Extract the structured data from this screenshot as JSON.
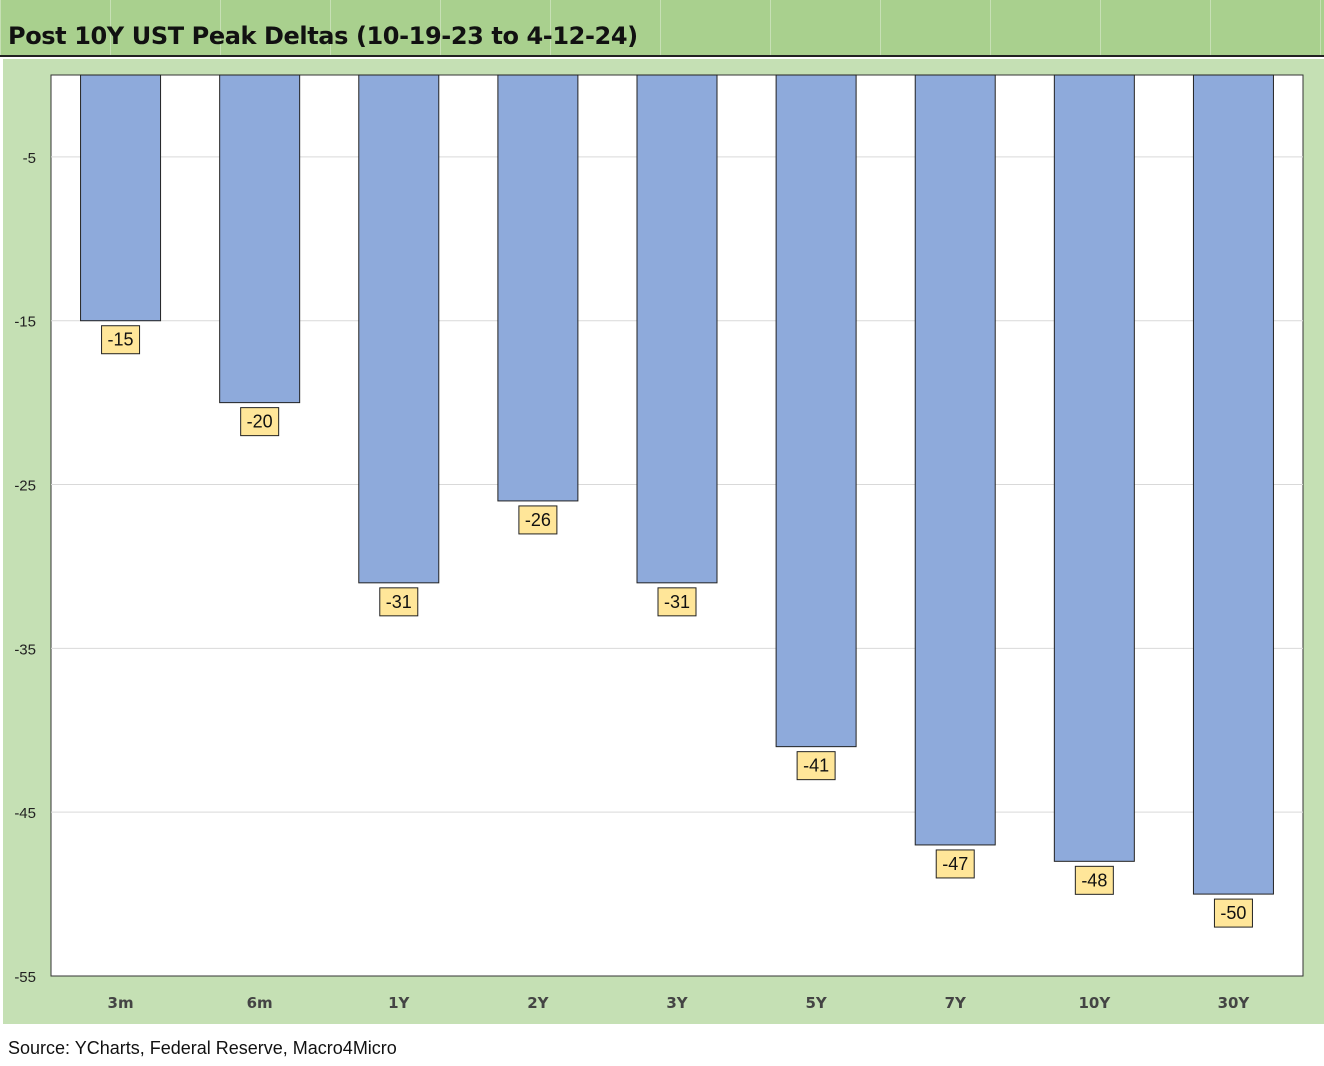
{
  "title": "Post 10Y UST Peak Deltas (10-19-23 to 4-12-24)",
  "source": "Source: YCharts, Federal Reserve, Macro4Micro",
  "colors": {
    "bar": "#8eaadb",
    "label_bg": "#ffe699",
    "plot_outer": "#c5e0b4",
    "title_bg": "#a9d08e"
  },
  "chart_data": {
    "type": "bar",
    "categories": [
      "3m",
      "6m",
      "1Y",
      "2Y",
      "3Y",
      "5Y",
      "7Y",
      "10Y",
      "30Y"
    ],
    "values": [
      -15,
      -20,
      -31,
      -26,
      -31,
      -41,
      -47,
      -48,
      -50
    ],
    "ylim": [
      -55,
      0
    ],
    "yticks": [
      -5,
      -15,
      -25,
      -35,
      -45,
      -55
    ],
    "grid": true,
    "legend": "none"
  }
}
